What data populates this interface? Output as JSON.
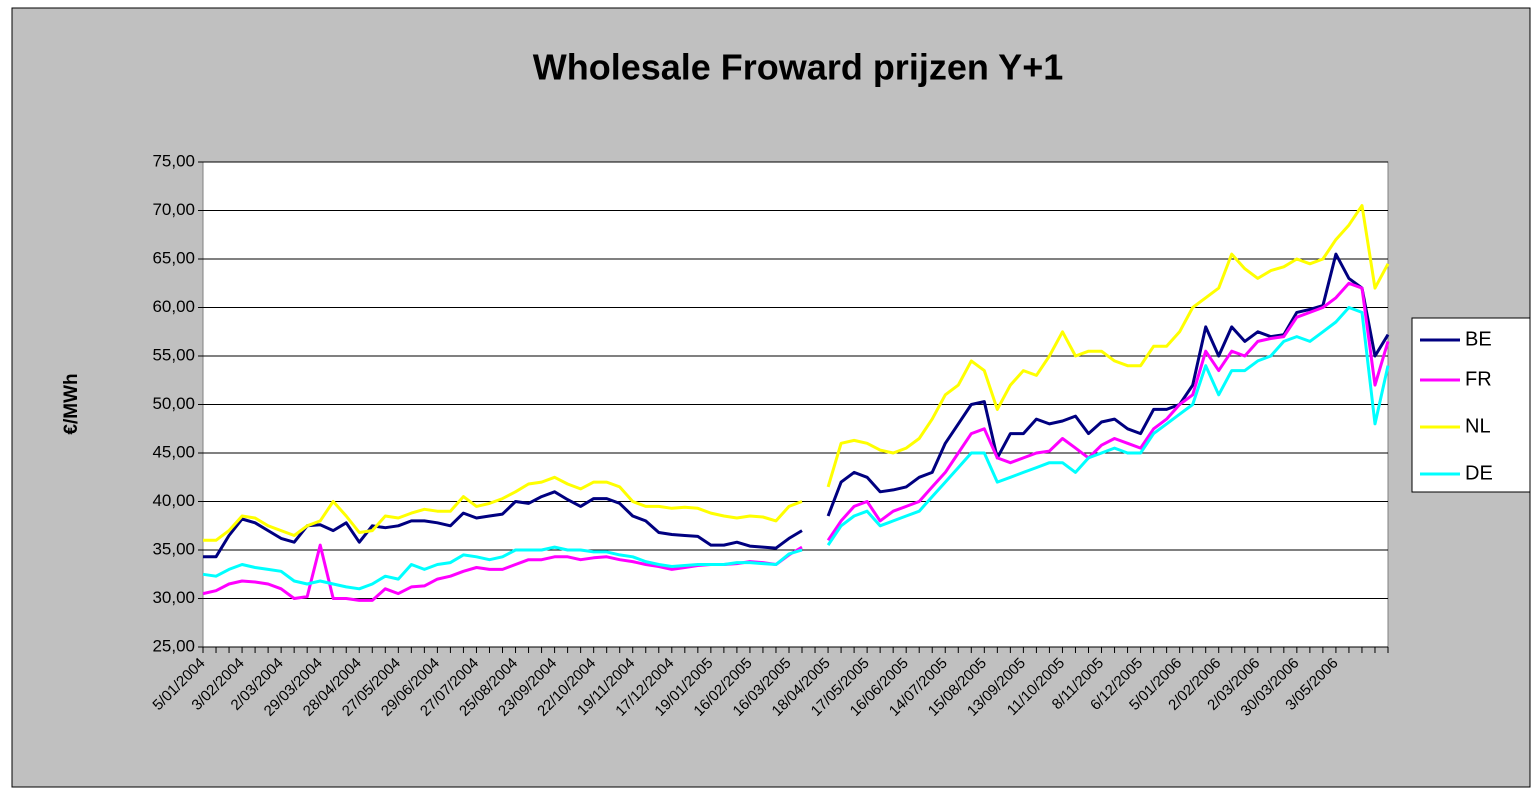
{
  "chart_data": {
    "type": "line",
    "title": "Wholesale Froward prijzen Y+1",
    "ylabel": "€/MWh",
    "categories": [
      "5/01/2004",
      null,
      null,
      "3/02/2004",
      null,
      null,
      "2/03/2004",
      null,
      null,
      "29/03/2004",
      null,
      null,
      "28/04/2004",
      null,
      null,
      "27/05/2004",
      null,
      null,
      "29/06/2004",
      null,
      null,
      "27/07/2004",
      null,
      null,
      "25/08/2004",
      null,
      null,
      "23/09/2004",
      null,
      null,
      "22/10/2004",
      null,
      null,
      "19/11/2004",
      null,
      null,
      "17/12/2004",
      null,
      null,
      "19/01/2005",
      null,
      null,
      "16/02/2005",
      null,
      null,
      "16/03/2005",
      null,
      null,
      "18/04/2005",
      null,
      null,
      "17/05/2005",
      null,
      null,
      "16/06/2005",
      null,
      null,
      "14/07/2005",
      null,
      null,
      "15/08/2005",
      null,
      null,
      "13/09/2005",
      null,
      null,
      "11/10/2005",
      null,
      null,
      "8/11/2005",
      null,
      null,
      "6/12/2005",
      null,
      null,
      "5/01/2006",
      null,
      null,
      "2/02/2006",
      null,
      null,
      "2/03/2006",
      null,
      null,
      "30/03/2006",
      null,
      null,
      "3/05/2006",
      null,
      null,
      null,
      null
    ],
    "series": [
      {
        "name": "BE",
        "color": "#000080",
        "values": [
          34.3,
          34.3,
          36.5,
          38.2,
          37.8,
          37.0,
          36.2,
          35.8,
          37.5,
          37.6,
          37.0,
          37.8,
          35.8,
          37.5,
          37.3,
          37.5,
          38.0,
          38.0,
          37.8,
          37.5,
          38.8,
          38.3,
          38.5,
          38.7,
          40.0,
          39.8,
          40.5,
          41.0,
          40.2,
          39.5,
          40.3,
          40.3,
          39.8,
          38.5,
          38.0,
          36.8,
          36.6,
          36.5,
          36.4,
          35.5,
          35.5,
          35.8,
          35.4,
          35.3,
          35.2,
          36.2,
          37.0,
          null,
          38.5,
          42.0,
          43.0,
          42.5,
          41.0,
          41.2,
          41.5,
          42.5,
          43.0,
          46.0,
          48.0,
          50.0,
          50.3,
          44.5,
          47.0,
          47.0,
          48.5,
          48.0,
          48.3,
          48.8,
          47.0,
          48.2,
          48.5,
          47.5,
          47.0,
          49.5,
          49.5,
          50.0,
          52.0,
          58.0,
          55.0,
          58.0,
          56.5,
          57.5,
          57.0,
          57.2,
          59.5,
          59.8,
          60.2,
          65.5,
          63.0,
          62.0,
          55.0,
          57.2
        ]
      },
      {
        "name": "FR",
        "color": "#ff00ff",
        "values": [
          30.5,
          30.8,
          31.5,
          31.8,
          31.7,
          31.5,
          31.0,
          30.0,
          30.2,
          35.5,
          30.0,
          30.0,
          29.8,
          29.8,
          31.0,
          30.5,
          31.2,
          31.3,
          32.0,
          32.3,
          32.8,
          33.2,
          33.0,
          33.0,
          33.5,
          34.0,
          34.0,
          34.3,
          34.3,
          34.0,
          34.2,
          34.3,
          34.0,
          33.8,
          33.5,
          33.3,
          33.0,
          33.2,
          33.4,
          33.5,
          33.5,
          33.6,
          33.8,
          33.7,
          33.5,
          34.5,
          35.3,
          null,
          36.0,
          38.0,
          39.5,
          40.0,
          38.0,
          39.0,
          39.5,
          40.0,
          41.5,
          43.0,
          45.0,
          47.0,
          47.5,
          44.5,
          44.0,
          44.5,
          45.0,
          45.2,
          46.5,
          45.5,
          44.5,
          45.8,
          46.5,
          46.0,
          45.5,
          47.5,
          48.5,
          50.0,
          51.0,
          55.5,
          53.5,
          55.5,
          55.0,
          56.5,
          56.8,
          57.0,
          59.0,
          59.5,
          60.0,
          61.0,
          62.5,
          62.0,
          52.0,
          56.5
        ]
      },
      {
        "name": "NL",
        "color": "#ffff00",
        "values": [
          36.0,
          36.0,
          37.0,
          38.5,
          38.3,
          37.5,
          37.0,
          36.5,
          37.5,
          38.0,
          40.0,
          38.5,
          36.8,
          37.0,
          38.5,
          38.3,
          38.8,
          39.2,
          39.0,
          39.0,
          40.5,
          39.5,
          39.8,
          40.3,
          41.0,
          41.8,
          42.0,
          42.5,
          41.8,
          41.3,
          42.0,
          42.0,
          41.5,
          40.0,
          39.5,
          39.5,
          39.3,
          39.4,
          39.3,
          38.8,
          38.5,
          38.3,
          38.5,
          38.4,
          38.0,
          39.5,
          40.0,
          null,
          41.5,
          46.0,
          46.3,
          46.0,
          45.3,
          45.0,
          45.5,
          46.5,
          48.5,
          51.0,
          52.0,
          54.5,
          53.5,
          49.5,
          52.0,
          53.5,
          53.0,
          55.0,
          57.5,
          55.0,
          55.5,
          55.5,
          54.5,
          54.0,
          54.0,
          56.0,
          56.0,
          57.5,
          60.0,
          61.0,
          62.0,
          65.5,
          64.0,
          63.0,
          63.8,
          64.2,
          65.0,
          64.5,
          65.0,
          67.0,
          68.5,
          70.5,
          62.0,
          64.5
        ]
      },
      {
        "name": "DE",
        "color": "#00ffff",
        "values": [
          32.5,
          32.3,
          33.0,
          33.5,
          33.2,
          33.0,
          32.8,
          31.8,
          31.5,
          31.8,
          31.5,
          31.2,
          31.0,
          31.5,
          32.3,
          32.0,
          33.5,
          33.0,
          33.5,
          33.7,
          34.5,
          34.3,
          34.0,
          34.3,
          35.0,
          35.0,
          35.0,
          35.3,
          35.0,
          35.0,
          34.8,
          34.8,
          34.5,
          34.3,
          33.8,
          33.5,
          33.3,
          33.4,
          33.5,
          33.5,
          33.5,
          33.7,
          33.7,
          33.6,
          33.5,
          34.6,
          35.0,
          null,
          35.5,
          37.5,
          38.5,
          39.0,
          37.5,
          38.0,
          38.5,
          39.0,
          40.5,
          42.0,
          43.5,
          45.0,
          45.0,
          42.0,
          42.5,
          43.0,
          43.5,
          44.0,
          44.0,
          43.0,
          44.5,
          45.0,
          45.5,
          45.0,
          45.0,
          47.0,
          48.0,
          49.0,
          50.0,
          54.0,
          51.0,
          53.5,
          53.5,
          54.5,
          55.0,
          56.5,
          57.0,
          56.5,
          57.5,
          58.5,
          60.0,
          59.5,
          48.0,
          54.0
        ]
      }
    ],
    "ylim": [
      25,
      75
    ],
    "yticks": [
      {
        "value": 25,
        "label": "25,00"
      },
      {
        "value": 30,
        "label": "30,00"
      },
      {
        "value": 35,
        "label": "35,00"
      },
      {
        "value": 40,
        "label": "40,00"
      },
      {
        "value": 45,
        "label": "45,00"
      },
      {
        "value": 50,
        "label": "50,00"
      },
      {
        "value": 55,
        "label": "55,00"
      },
      {
        "value": 60,
        "label": "60,00"
      },
      {
        "value": 65,
        "label": "65,00"
      },
      {
        "value": 70,
        "label": "70,00"
      },
      {
        "value": 75,
        "label": "75,00"
      }
    ],
    "grid": true,
    "legend": "right"
  }
}
